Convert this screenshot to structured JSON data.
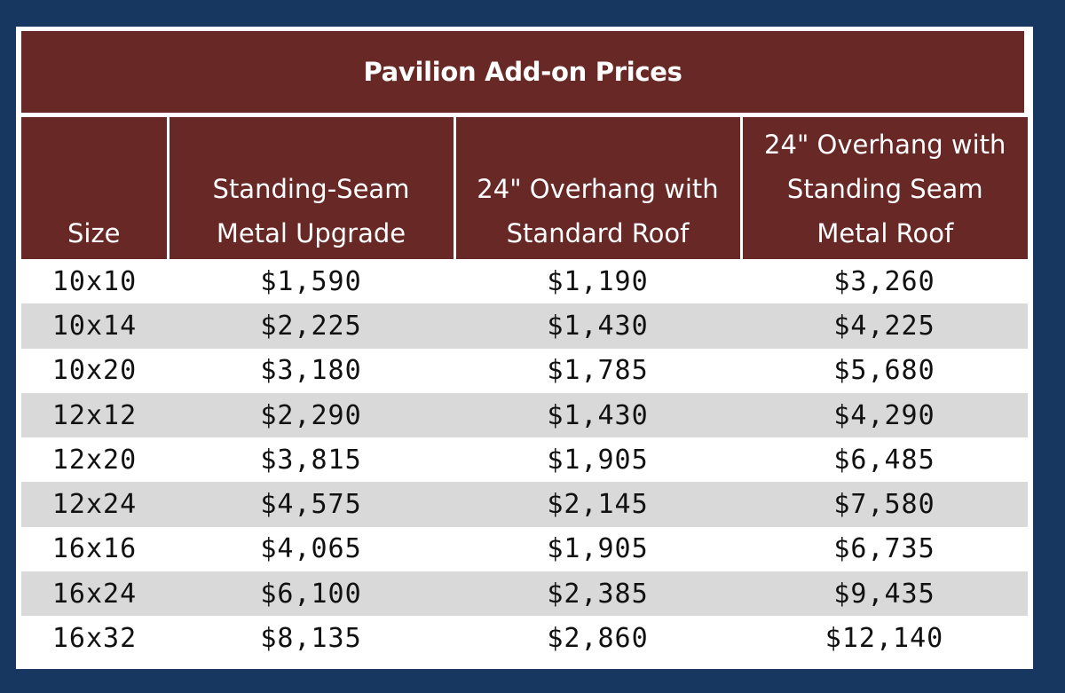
{
  "title": "Pavilion Add-on Prices",
  "headers": {
    "size": "Size",
    "col_a_line1": "Standing-Seam",
    "col_a_line2": "Metal Upgrade",
    "col_b_line1": "24\" Overhang with",
    "col_b_line2": "Standard Roof",
    "col_c_line1": "24\" Overhang with",
    "col_c_line2": "Standing Seam",
    "col_c_line3": "Metal Roof"
  },
  "rows": [
    {
      "size": "10x10",
      "a": "$1,590",
      "b": "$1,190",
      "c": "$3,260"
    },
    {
      "size": "10x14",
      "a": "$2,225",
      "b": "$1,430",
      "c": "$4,225"
    },
    {
      "size": "10x20",
      "a": "$3,180",
      "b": "$1,785",
      "c": "$5,680"
    },
    {
      "size": "12x12",
      "a": "$2,290",
      "b": "$1,430",
      "c": "$4,290"
    },
    {
      "size": "12x20",
      "a": "$3,815",
      "b": "$1,905",
      "c": "$6,485"
    },
    {
      "size": "12x24",
      "a": "$4,575",
      "b": "$2,145",
      "c": "$7,580"
    },
    {
      "size": "16x16",
      "a": "$4,065",
      "b": "$1,905",
      "c": "$6,735"
    },
    {
      "size": "16x24",
      "a": "$6,100",
      "b": "$2,385",
      "c": "$9,435"
    },
    {
      "size": "16x32",
      "a": "$8,135",
      "b": "$2,860",
      "c": "$12,140"
    }
  ],
  "colors": {
    "background": "#173660",
    "header": "#672826",
    "stripe": "#d9d9d9"
  }
}
